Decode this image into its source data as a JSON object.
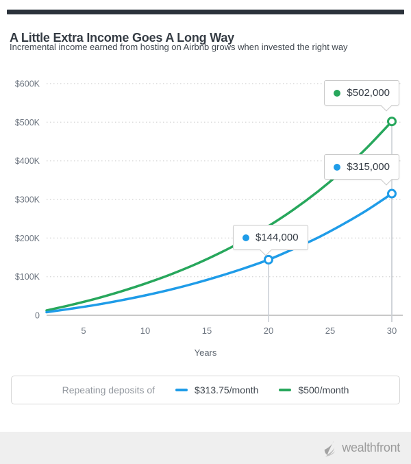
{
  "header": {
    "title": "A Little Extra Income Goes A Long Way",
    "subtitle": "Incremental income earned from hosting on Airbnb grows when invested the right way"
  },
  "chart_data": {
    "type": "line",
    "title": "",
    "xlabel": "Years",
    "ylabel": "",
    "xlim": [
      2,
      30
    ],
    "ylim": [
      0,
      600000
    ],
    "grid": "dotted horizontal",
    "x": [
      2,
      4,
      6,
      8,
      10,
      12,
      14,
      16,
      18,
      20,
      22,
      24,
      26,
      28,
      30
    ],
    "series": [
      {
        "name": "$313.75/month",
        "color": "#1f9ce8",
        "values": [
          8000,
          17000,
          27000,
          38500,
          51500,
          66000,
          82500,
          101000,
          121500,
          144000,
          171500,
          201000,
          235000,
          272500,
          315000
        ]
      },
      {
        "name": "$500/month",
        "color": "#27a75c",
        "values": [
          12500,
          27000,
          43000,
          61500,
          82000,
          105000,
          131000,
          160500,
          193500,
          231000,
          273000,
          320500,
          374000,
          434500,
          502000
        ]
      }
    ],
    "y_ticks": [
      "$600K",
      "$500K",
      "$400K",
      "$300K",
      "$200K",
      "$100K",
      "0"
    ],
    "x_ticks": [
      "5",
      "10",
      "15",
      "20",
      "25",
      "30"
    ],
    "annotations": [
      {
        "series": "$500/month",
        "year": 30,
        "label": "$502,000"
      },
      {
        "series": "$313.75/month",
        "year": 30,
        "label": "$315,000"
      },
      {
        "series": "$313.75/month",
        "year": 20,
        "label": "$144,000"
      }
    ]
  },
  "legend": {
    "prefix": "Repeating deposits of",
    "items": [
      {
        "label": "$313.75/month",
        "color": "#1f9ce8"
      },
      {
        "label": "$500/month",
        "color": "#27a75c"
      }
    ]
  },
  "footer": {
    "logo_text": "wealthfront"
  }
}
